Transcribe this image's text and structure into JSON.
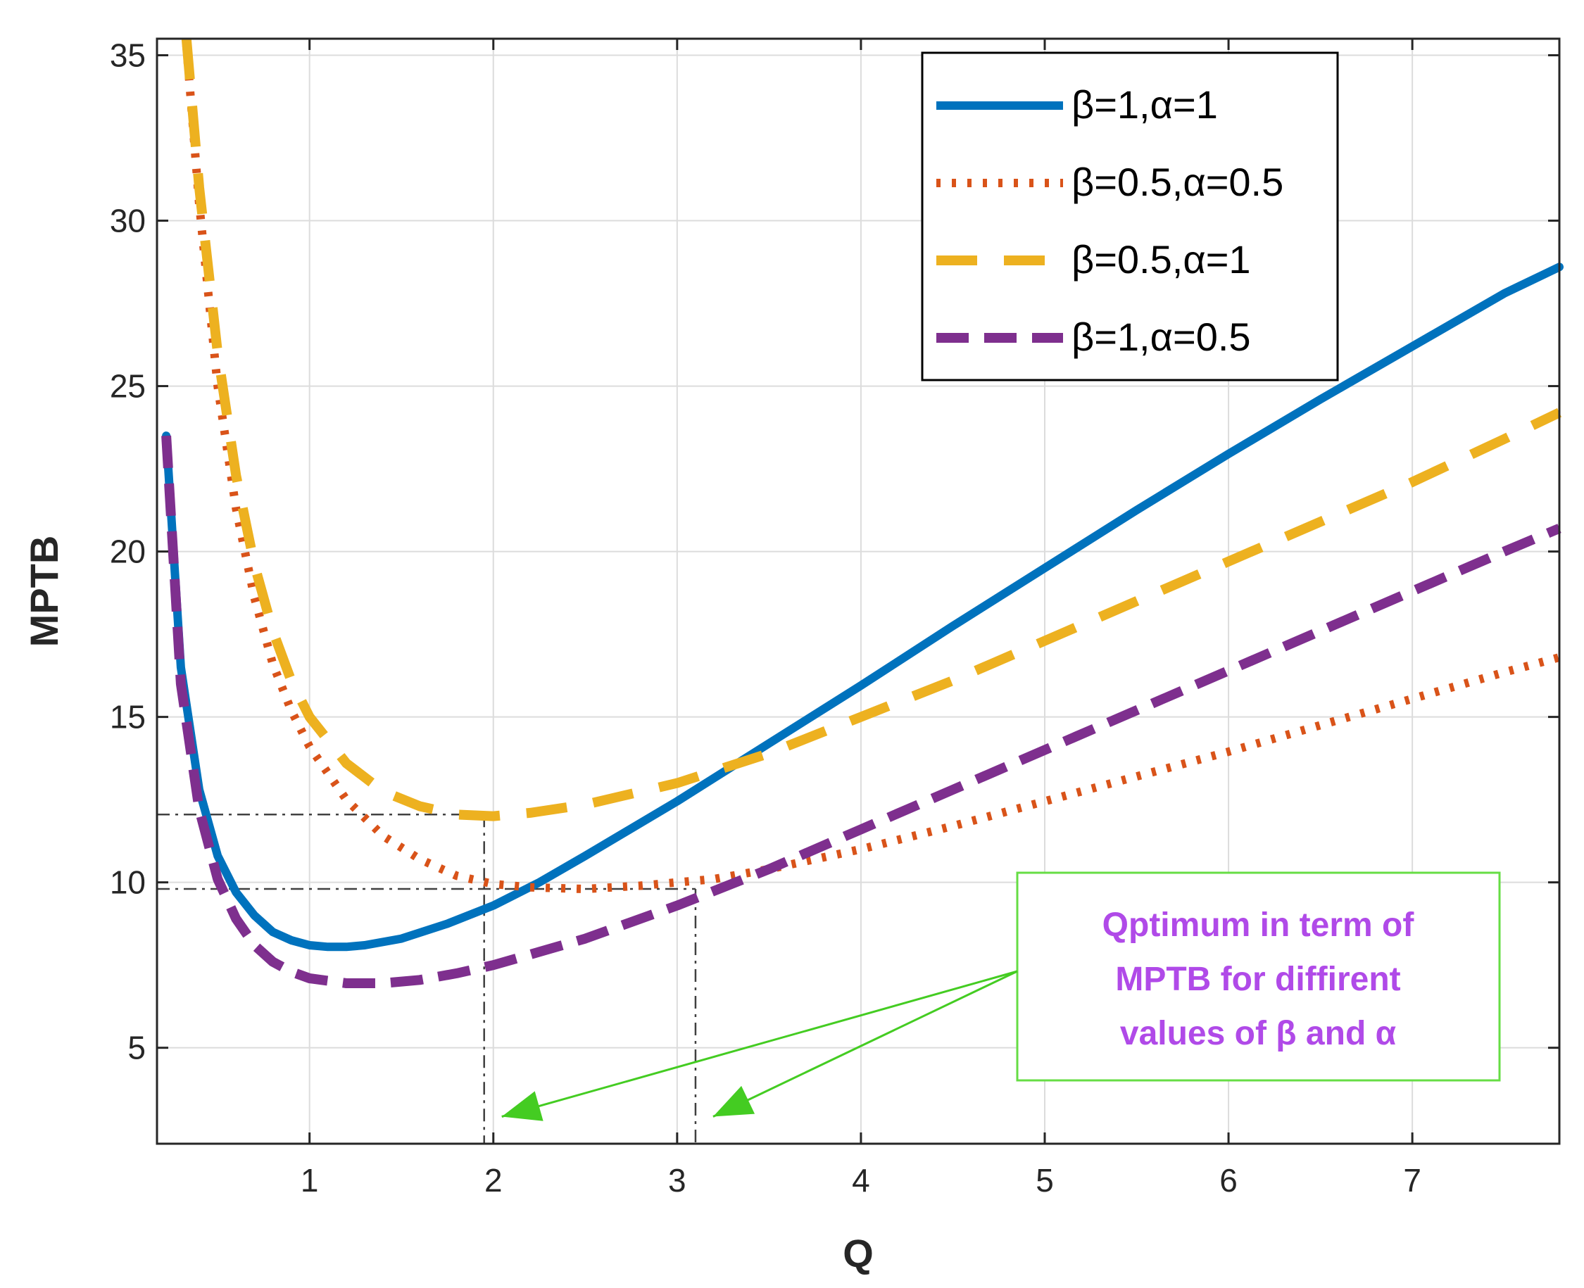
{
  "chart_data": {
    "type": "line",
    "title": "",
    "xlabel": "Q",
    "ylabel": "MPTB",
    "xlim": [
      0.17,
      7.8
    ],
    "ylim": [
      2.1,
      35.5
    ],
    "xticks": [
      1,
      2,
      3,
      4,
      5,
      6,
      7
    ],
    "yticks": [
      5,
      10,
      15,
      20,
      25,
      30,
      35
    ],
    "grid": true,
    "legend_position": "top-right",
    "series": [
      {
        "name": "β=1,α=1",
        "color": "#0072BD",
        "style": "solid",
        "points": [
          [
            0.22,
            23.5
          ],
          [
            0.3,
            16.5
          ],
          [
            0.4,
            12.8
          ],
          [
            0.5,
            10.8
          ],
          [
            0.6,
            9.7
          ],
          [
            0.7,
            9.0
          ],
          [
            0.8,
            8.5
          ],
          [
            0.9,
            8.25
          ],
          [
            1.0,
            8.1
          ],
          [
            1.1,
            8.05
          ],
          [
            1.2,
            8.05
          ],
          [
            1.3,
            8.1
          ],
          [
            1.5,
            8.3
          ],
          [
            1.75,
            8.75
          ],
          [
            2.0,
            9.3
          ],
          [
            2.25,
            10.0
          ],
          [
            2.5,
            10.8
          ],
          [
            3.0,
            12.45
          ],
          [
            3.5,
            14.2
          ],
          [
            4.0,
            15.95
          ],
          [
            4.5,
            17.75
          ],
          [
            5.0,
            19.5
          ],
          [
            5.5,
            21.25
          ],
          [
            6.0,
            22.95
          ],
          [
            6.5,
            24.6
          ],
          [
            7.0,
            26.2
          ],
          [
            7.5,
            27.8
          ],
          [
            7.8,
            28.6
          ]
        ]
      },
      {
        "name": "β=0.5,α=0.5",
        "color": "#D95319",
        "style": "dotted",
        "points": [
          [
            0.33,
            35.3
          ],
          [
            0.4,
            30.5
          ],
          [
            0.5,
            25.0
          ],
          [
            0.6,
            21.3
          ],
          [
            0.7,
            18.6
          ],
          [
            0.8,
            16.6
          ],
          [
            0.9,
            15.2
          ],
          [
            1.0,
            14.1
          ],
          [
            1.2,
            12.5
          ],
          [
            1.4,
            11.4
          ],
          [
            1.6,
            10.7
          ],
          [
            1.8,
            10.2
          ],
          [
            2.0,
            9.95
          ],
          [
            2.2,
            9.85
          ],
          [
            2.5,
            9.8
          ],
          [
            2.8,
            9.9
          ],
          [
            3.0,
            10.0
          ],
          [
            3.2,
            10.1
          ],
          [
            3.5,
            10.4
          ],
          [
            4.0,
            11.0
          ],
          [
            4.5,
            11.7
          ],
          [
            5.0,
            12.45
          ],
          [
            5.5,
            13.2
          ],
          [
            6.0,
            13.95
          ],
          [
            6.5,
            14.75
          ],
          [
            7.0,
            15.55
          ],
          [
            7.5,
            16.35
          ],
          [
            7.8,
            16.8
          ]
        ]
      },
      {
        "name": "β=0.5,α=1",
        "color": "#EDB120",
        "style": "dashed",
        "points": [
          [
            0.33,
            35.5
          ],
          [
            0.4,
            31.0
          ],
          [
            0.5,
            26.0
          ],
          [
            0.6,
            22.3
          ],
          [
            0.7,
            19.6
          ],
          [
            0.8,
            17.6
          ],
          [
            0.9,
            16.1
          ],
          [
            1.0,
            15.0
          ],
          [
            1.2,
            13.6
          ],
          [
            1.4,
            12.75
          ],
          [
            1.6,
            12.3
          ],
          [
            1.8,
            12.05
          ],
          [
            2.0,
            12.0
          ],
          [
            2.2,
            12.1
          ],
          [
            2.5,
            12.35
          ],
          [
            3.0,
            13.0
          ],
          [
            3.5,
            13.9
          ],
          [
            4.0,
            15.0
          ],
          [
            4.5,
            16.1
          ],
          [
            5.0,
            17.3
          ],
          [
            5.5,
            18.5
          ],
          [
            6.0,
            19.7
          ],
          [
            6.5,
            20.9
          ],
          [
            7.0,
            22.1
          ],
          [
            7.5,
            23.4
          ],
          [
            7.8,
            24.2
          ]
        ]
      },
      {
        "name": "β=1,α=0.5",
        "color": "#7E2F8E",
        "style": "dashed",
        "points": [
          [
            0.22,
            23.5
          ],
          [
            0.3,
            16.0
          ],
          [
            0.4,
            12.2
          ],
          [
            0.5,
            10.1
          ],
          [
            0.6,
            8.9
          ],
          [
            0.7,
            8.1
          ],
          [
            0.8,
            7.6
          ],
          [
            0.9,
            7.3
          ],
          [
            1.0,
            7.1
          ],
          [
            1.2,
            6.95
          ],
          [
            1.4,
            6.95
          ],
          [
            1.6,
            7.05
          ],
          [
            1.8,
            7.25
          ],
          [
            2.0,
            7.5
          ],
          [
            2.5,
            8.3
          ],
          [
            3.0,
            9.3
          ],
          [
            3.5,
            10.4
          ],
          [
            4.0,
            11.6
          ],
          [
            4.5,
            12.8
          ],
          [
            5.0,
            14.0
          ],
          [
            5.5,
            15.2
          ],
          [
            6.0,
            16.4
          ],
          [
            6.5,
            17.6
          ],
          [
            7.0,
            18.8
          ],
          [
            7.5,
            20.0
          ],
          [
            7.8,
            20.7
          ]
        ]
      }
    ],
    "reference_lines": [
      {
        "name": "opt-1",
        "color": "#404040",
        "x": 1.95,
        "y": 12.05
      },
      {
        "name": "opt-2",
        "color": "#404040",
        "x": 3.1,
        "y": 9.8
      }
    ],
    "annotation": {
      "lines": [
        "Qptimum in term of",
        "MPTB for diffirent",
        "values of β and α"
      ],
      "text_color": "#B04AE8",
      "box_color": "#66DD44",
      "arrow_color": "#44CC22",
      "anchor_data": [
        4.8,
        6.1
      ],
      "targets": [
        [
          1.95,
          2.6
        ],
        [
          3.1,
          2.6
        ]
      ]
    }
  }
}
